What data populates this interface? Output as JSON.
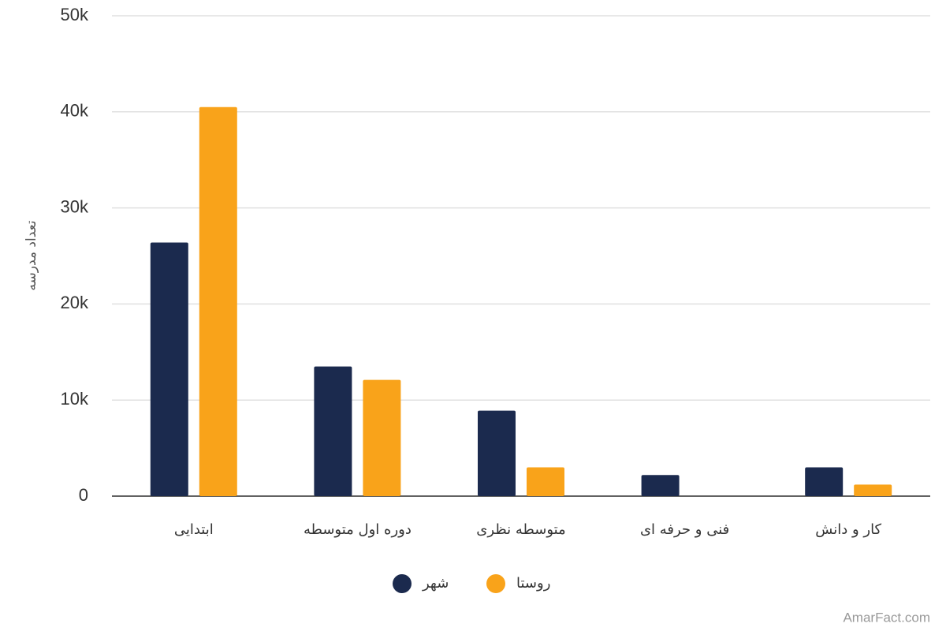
{
  "chart_data": {
    "type": "bar",
    "y_label": "تعداد مدرسه",
    "categories": [
      "ابتدایی",
      "دوره اول متوسطه",
      "متوسطه نظری",
      "فنی و حرفه ای",
      "کار و دانش"
    ],
    "series": [
      {
        "name": "شهر",
        "color": "#1b2a4e",
        "values": [
          26400,
          13500,
          8900,
          2200,
          3000
        ]
      },
      {
        "name": "روستا",
        "color": "#f9a31a",
        "values": [
          40500,
          12100,
          3000,
          0,
          1200
        ]
      }
    ],
    "ylim": [
      0,
      50000
    ],
    "yticks": [
      0,
      {
        "value": 10000,
        "label": "10k"
      },
      {
        "value": 20000,
        "label": "20k"
      },
      {
        "value": 30000,
        "label": "30k"
      },
      {
        "value": 40000,
        "label": "40k"
      },
      {
        "value": 50000,
        "label": "50k"
      }
    ],
    "grid": true,
    "watermark": "AmarFact.com"
  }
}
